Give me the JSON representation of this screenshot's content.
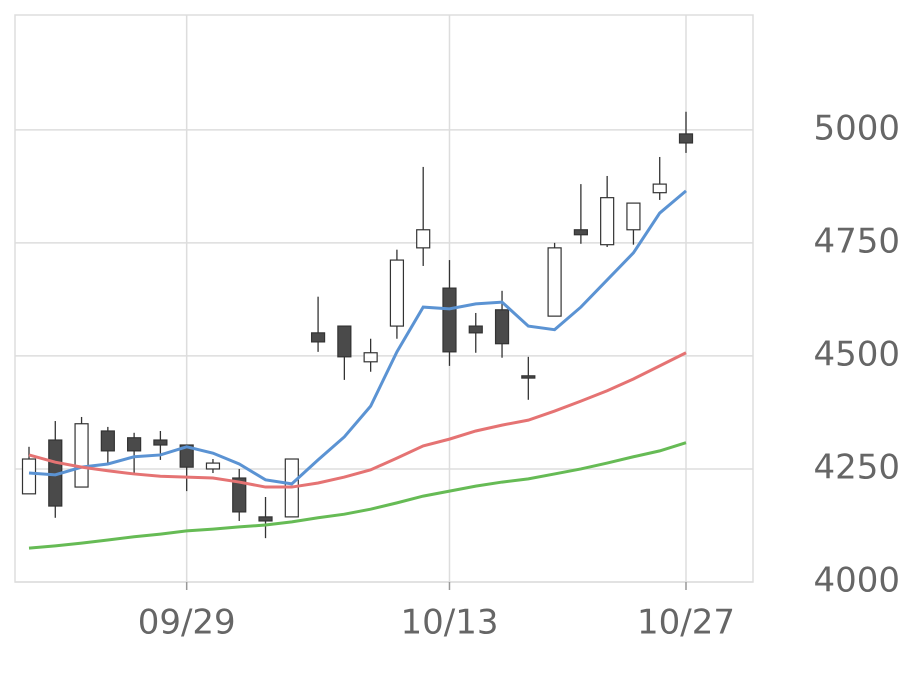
{
  "chart_data": {
    "type": "candlestick",
    "categories": [
      null,
      null,
      null,
      null,
      null,
      null,
      "09/29",
      null,
      null,
      null,
      null,
      null,
      null,
      null,
      null,
      null,
      "10/13",
      null,
      null,
      null,
      null,
      null,
      null,
      null,
      null,
      "10/27"
    ],
    "open": [
      4195,
      4314,
      4210,
      4334,
      4319,
      4314,
      4303,
      4250,
      4230,
      4144,
      4144,
      4551,
      4566,
      4487,
      4566,
      4739,
      4650,
      4566,
      4602,
      4456,
      4588,
      4779,
      4746,
      4779,
      4861,
      4991
    ],
    "high": [
      4299,
      4356,
      4365,
      4343,
      4330,
      4334,
      4303,
      4272,
      4250,
      4188,
      4272,
      4631,
      4566,
      4538,
      4735,
      4918,
      4712,
      4595,
      4644,
      4498,
      4750,
      4880,
      4898,
      4838,
      4940,
      5040
    ],
    "low": [
      4195,
      4142,
      4210,
      4261,
      4241,
      4270,
      4201,
      4241,
      4135,
      4097,
      4144,
      4509,
      4447,
      4465,
      4538,
      4699,
      4478,
      4507,
      4496,
      4403,
      4588,
      4748,
      4741,
      4746,
      4845,
      4949
    ],
    "close": [
      4272,
      4168,
      4350,
      4290,
      4290,
      4303,
      4254,
      4263,
      4155,
      4135,
      4272,
      4531,
      4498,
      4507,
      4712,
      4779,
      4509,
      4551,
      4527,
      4451,
      4739,
      4768,
      4850,
      4838,
      4880,
      4971
    ],
    "up_color": "#ffffff",
    "down_color": "#4a4a4a",
    "series": [
      {
        "color": "#5b93d3",
        "values": [
          4241,
          4237,
          4254,
          4261,
          4277,
          4281,
          4299,
          4285,
          4261,
          4226,
          4217,
          4270,
          4321,
          4389,
          4509,
          4608,
          4604,
          4615,
          4619,
          4566,
          4558,
          4608,
          4668,
          4728,
          4816,
          4865
        ]
      },
      {
        "color": "#e57373",
        "values": [
          4281,
          4265,
          4254,
          4246,
          4239,
          4234,
          4232,
          4230,
          4221,
          4210,
          4210,
          4219,
          4232,
          4248,
          4274,
          4301,
          4316,
          4334,
          4347,
          4358,
          4378,
          4400,
          4423,
          4449,
          4478,
          4507
        ]
      },
      {
        "color": "#66bb55",
        "values": [
          4075,
          4080,
          4086,
          4093,
          4100,
          4106,
          4113,
          4117,
          4122,
          4126,
          4133,
          4142,
          4150,
          4161,
          4175,
          4190,
          4201,
          4212,
          4221,
          4228,
          4239,
          4250,
          4263,
          4277,
          4290,
          4308
        ]
      }
    ],
    "ylim": [
      4000,
      5254
    ],
    "yticks": [
      4000,
      4250,
      4500,
      4750,
      5000
    ],
    "grid": true
  }
}
